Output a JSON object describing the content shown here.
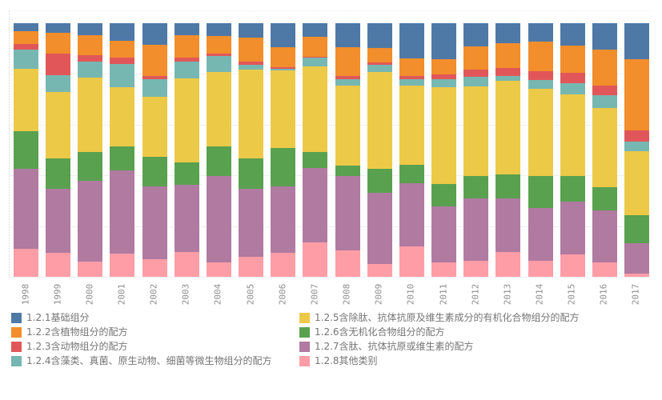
{
  "chart_data": {
    "type": "bar",
    "stacked": true,
    "unit": "percent",
    "title": "",
    "xlabel": "",
    "ylabel": "",
    "ylim": [
      0,
      100
    ],
    "gridlines": "horizontal every 20%, dotted light gray",
    "legend_position": "bottom, two columns",
    "stack_order_top_to_bottom": [
      "1.2.1",
      "1.2.2",
      "1.2.3",
      "1.2.4",
      "1.2.5",
      "1.2.6",
      "1.2.7",
      "1.2.8"
    ],
    "categories": [
      "1998",
      "1999",
      "2000",
      "2001",
      "2002",
      "2003",
      "2004",
      "2005",
      "2006",
      "2007",
      "2008",
      "2009",
      "2010",
      "2011",
      "2012",
      "2013",
      "2014",
      "2015",
      "2016",
      "2017"
    ],
    "series": [
      {
        "name": "1.2.1基础组分",
        "color": "#4e79a7",
        "values": [
          3.1,
          3.7,
          4.7,
          6.8,
          8.4,
          4.7,
          5.2,
          5.7,
          9.6,
          5.4,
          9.4,
          9.6,
          13.8,
          14.1,
          9.1,
          8.0,
          7.3,
          8.9,
          10.4,
          14.3
        ]
      },
      {
        "name": "1.2.2含植物组分的配方",
        "color": "#f28e2b",
        "values": [
          5.2,
          8.4,
          7.8,
          6.8,
          12.5,
          8.9,
          6.8,
          9.4,
          7.8,
          7.8,
          11.5,
          5.7,
          7.1,
          6.0,
          9.2,
          9.7,
          11.5,
          10.7,
          14.3,
          28.0
        ]
      },
      {
        "name": "1.2.3含动物组分的配方",
        "color": "#e15759",
        "values": [
          2.1,
          8.4,
          2.6,
          2.6,
          1.3,
          1.6,
          1.0,
          1.3,
          0.5,
          0.5,
          1.3,
          1.0,
          1.3,
          2.1,
          2.8,
          3.1,
          3.7,
          4.2,
          3.7,
          4.4
        ]
      },
      {
        "name": "1.2.4含藻类、真菌、原生动物、细菌等微生物组分的配方",
        "color": "#76b7b2",
        "values": [
          7.5,
          6.8,
          6.3,
          8.9,
          6.8,
          6.5,
          6.3,
          1.9,
          0.8,
          3.4,
          2.4,
          2.9,
          2.4,
          3.1,
          3.7,
          1.8,
          3.3,
          4.2,
          5.0,
          3.7
        ]
      },
      {
        "name": "1.2.5含除肽、抗体抗原及维生素成分的有机化合物组分的配方",
        "color": "#edc948",
        "values": [
          24.8,
          26.1,
          29.3,
          23.5,
          23.8,
          33.2,
          29.3,
          35.0,
          30.5,
          33.6,
          31.6,
          38.1,
          31.3,
          38.1,
          35.5,
          36.9,
          34.5,
          32.4,
          31.3,
          25.4
        ]
      },
      {
        "name": "1.2.6含无机化合物组分的配方",
        "color": "#59a14f",
        "values": [
          14.6,
          12.0,
          11.5,
          9.4,
          11.5,
          8.9,
          11.5,
          12.0,
          15.2,
          6.3,
          4.2,
          9.4,
          7.3,
          8.9,
          8.9,
          9.6,
          12.5,
          10.1,
          9.1,
          11.0
        ]
      },
      {
        "name": "1.2.7含肽、抗体抗原或维生素的配方",
        "color": "#b07aa1",
        "values": [
          31.7,
          25.1,
          31.9,
          32.9,
          28.7,
          26.3,
          34.2,
          26.6,
          25.9,
          29.3,
          29.3,
          28.2,
          24.8,
          21.9,
          24.6,
          20.9,
          20.9,
          20.7,
          20.4,
          12.0
        ]
      },
      {
        "name": "1.2.8其他类别",
        "color": "#ff9da7",
        "values": [
          11.0,
          9.6,
          6.0,
          9.1,
          7.0,
          9.9,
          5.7,
          8.0,
          9.6,
          13.6,
          10.4,
          4.9,
          12.0,
          5.7,
          6.3,
          9.9,
          6.3,
          8.9,
          5.7,
          1.3
        ]
      }
    ]
  }
}
